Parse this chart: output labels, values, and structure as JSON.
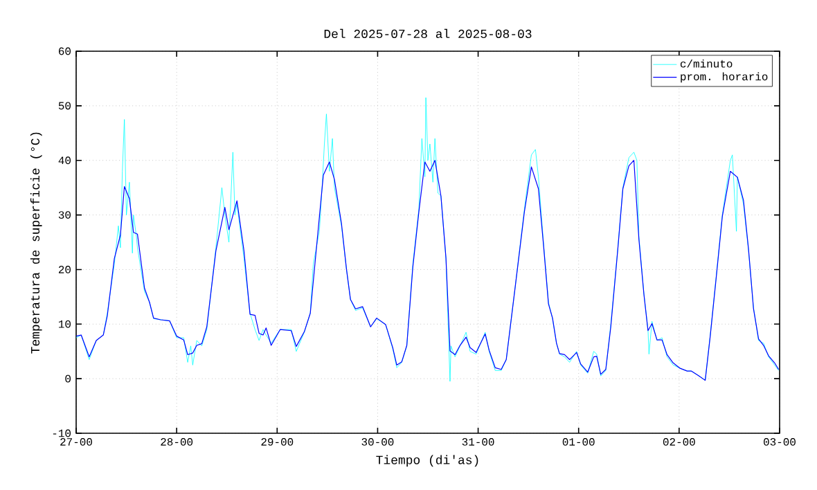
{
  "chart_data": {
    "type": "line",
    "title": "Del 2025-07-28 al 2025-08-03",
    "xlabel": "Tiempo (di'as)",
    "ylabel": "Temperatura de superficie (°C)",
    "xlim": [
      "2025-07-27",
      "2025-08-03"
    ],
    "ylim": [
      -10,
      60
    ],
    "xticks": [
      {
        "value": "2025-07-27",
        "label": "27-00"
      },
      {
        "value": "2025-07-28",
        "label": "28-00"
      },
      {
        "value": "2025-07-29",
        "label": "29-00"
      },
      {
        "value": "2025-07-30",
        "label": "30-00"
      },
      {
        "value": "2025-07-31",
        "label": "31-00"
      },
      {
        "value": "2025-08-01",
        "label": "01-00"
      },
      {
        "value": "2025-08-02",
        "label": "02-00"
      },
      {
        "value": "2025-08-03",
        "label": "03-00"
      }
    ],
    "yticks": [
      -10,
      0,
      10,
      20,
      30,
      40,
      50,
      60
    ],
    "grid": true,
    "legend": "top right",
    "line_style": "solid",
    "marker": "none",
    "series": [
      {
        "name": "c/minuto",
        "color": "#00ffff",
        "x": [
          "2025-07-27T00:00",
          "2025-07-27T01:12",
          "2025-07-27T03:07",
          "2025-07-27T04:48",
          "2025-07-27T06:29",
          "2025-07-27T07:26",
          "2025-07-27T09:07",
          "2025-07-27T10:05",
          "2025-07-27T10:34",
          "2025-07-27T11:02",
          "2025-07-27T11:31",
          "2025-07-27T12:00",
          "2025-07-27T12:43",
          "2025-07-27T13:26",
          "2025-07-27T13:41",
          "2025-07-27T14:24",
          "2025-07-27T14:38",
          "2025-07-27T16:19",
          "2025-07-27T17:31",
          "2025-07-27T18:29",
          "2025-07-27T20:10",
          "2025-07-27T22:19",
          "2025-07-28T00:00",
          "2025-07-28T01:41",
          "2025-07-28T02:38",
          "2025-07-28T03:22",
          "2025-07-28T03:50",
          "2025-07-28T04:48",
          "2025-07-28T06:00",
          "2025-07-28T07:12",
          "2025-07-28T09:22",
          "2025-07-28T10:48",
          "2025-07-28T11:31",
          "2025-07-28T12:29",
          "2025-07-28T13:26",
          "2025-07-28T13:55",
          "2025-07-28T14:24",
          "2025-07-28T16:05",
          "2025-07-28T17:31",
          "2025-07-28T18:43",
          "2025-07-28T19:41",
          "2025-07-28T20:38",
          "2025-07-28T21:22",
          "2025-07-28T22:34",
          "2025-07-29T00:43",
          "2025-07-29T03:22",
          "2025-07-29T04:34",
          "2025-07-29T06:29",
          "2025-07-29T07:55",
          "2025-07-29T08:38",
          "2025-07-29T10:05",
          "2025-07-29T10:48",
          "2025-07-29T11:17",
          "2025-07-29T11:46",
          "2025-07-29T12:29",
          "2025-07-29T13:12",
          "2025-07-29T13:41",
          "2025-07-29T15:22",
          "2025-07-29T16:34",
          "2025-07-29T17:31",
          "2025-07-29T18:43",
          "2025-07-29T20:24",
          "2025-07-29T22:19",
          "2025-07-29T23:46",
          "2025-07-30T01:55",
          "2025-07-30T03:36",
          "2025-07-30T04:34",
          "2025-07-30T05:46",
          "2025-07-30T06:58",
          "2025-07-30T08:24",
          "2025-07-30T09:50",
          "2025-07-30T10:34",
          "2025-07-30T11:17",
          "2025-07-30T11:31",
          "2025-07-30T12:00",
          "2025-07-30T12:29",
          "2025-07-30T13:12",
          "2025-07-30T13:41",
          "2025-07-30T14:24",
          "2025-07-30T15:07",
          "2025-07-30T16:19",
          "2025-07-30T17:17",
          "2025-07-30T17:31",
          "2025-07-30T18:29",
          "2025-07-30T19:41",
          "2025-07-30T21:07",
          "2025-07-30T22:05",
          "2025-07-30T23:31",
          "2025-07-31T01:41",
          "2025-07-31T02:38",
          "2025-07-31T04:05",
          "2025-07-31T05:31",
          "2025-07-31T06:43",
          "2025-07-31T08:53",
          "2025-07-31T11:02",
          "2025-07-31T12:43",
          "2025-07-31T13:41",
          "2025-07-31T14:24",
          "2025-07-31T15:36",
          "2025-07-31T16:48",
          "2025-07-31T17:46",
          "2025-07-31T18:43",
          "2025-07-31T19:26",
          "2025-07-31T20:38",
          "2025-07-31T21:50",
          "2025-07-31T23:31",
          "2025-08-01T00:29",
          "2025-08-01T02:10",
          "2025-08-01T03:36",
          "2025-08-01T04:19",
          "2025-08-01T05:17",
          "2025-08-01T06:29",
          "2025-08-01T07:41",
          "2025-08-01T09:22",
          "2025-08-01T10:34",
          "2025-08-01T12:00",
          "2025-08-01T13:12",
          "2025-08-01T13:55",
          "2025-08-01T14:24",
          "2025-08-01T15:36",
          "2025-08-01T16:34",
          "2025-08-01T16:48",
          "2025-08-01T17:31",
          "2025-08-01T18:43",
          "2025-08-01T19:55",
          "2025-08-01T21:07",
          "2025-08-01T22:34",
          "2025-08-02T00:14",
          "2025-08-02T01:55",
          "2025-08-02T02:53",
          "2025-08-02T04:34",
          "2025-08-02T06:14",
          "2025-08-02T07:26",
          "2025-08-02T08:53",
          "2025-08-02T10:19",
          "2025-08-02T12:14",
          "2025-08-02T12:43",
          "2025-08-02T13:41",
          "2025-08-02T13:55",
          "2025-08-02T15:22",
          "2025-08-02T16:34",
          "2025-08-02T17:46",
          "2025-08-02T18:58",
          "2025-08-02T20:10",
          "2025-08-02T21:22",
          "2025-08-02T22:48",
          "2025-08-02T23:46"
        ],
        "values": [
          7.5,
          8,
          3.5,
          7,
          8,
          12,
          21,
          28,
          24,
          38,
          47.5,
          30,
          36,
          23,
          30,
          26,
          24,
          16,
          14,
          11,
          10.8,
          10.6,
          7.5,
          7.5,
          3,
          6,
          2.5,
          7,
          6,
          9,
          24,
          35,
          30,
          25,
          41.5,
          30,
          32,
          22,
          12,
          9,
          7,
          9,
          8,
          6.5,
          9,
          9,
          5,
          8.5,
          12,
          21,
          27,
          36,
          43,
          48.5,
          38,
          44,
          35,
          28,
          20,
          14.5,
          12.5,
          13,
          9.5,
          11,
          9.9,
          5.5,
          2,
          3,
          6,
          21,
          31,
          44,
          37,
          51.5,
          40,
          43,
          36,
          44,
          34,
          33.5,
          22,
          -0.5,
          6,
          4,
          6,
          8.5,
          5,
          4.5,
          8.5,
          5,
          1.5,
          1.5,
          3.5,
          17,
          31,
          41,
          42,
          37,
          25,
          14,
          11,
          6.5,
          4.5,
          4,
          3,
          5,
          2.5,
          1,
          5,
          4.5,
          0.5,
          1.5,
          10,
          24,
          35,
          40.5,
          41.5,
          40,
          26,
          15.5,
          9,
          4.5,
          10.5,
          7,
          7.5,
          4,
          2.5,
          1.9,
          1.4,
          1.4,
          0.6,
          -0.3,
          8,
          19,
          30,
          40,
          41,
          27,
          37,
          32,
          23.5,
          13,
          7,
          6.5,
          4,
          2.5,
          1.5
        ]
      },
      {
        "name": "prom. horario",
        "color": "#0000ff",
        "x": [
          "2025-07-27T00:00",
          "2025-07-27T01:12",
          "2025-07-27T03:07",
          "2025-07-27T04:48",
          "2025-07-27T06:29",
          "2025-07-27T07:26",
          "2025-07-27T09:07",
          "2025-07-27T10:34",
          "2025-07-27T11:31",
          "2025-07-27T12:43",
          "2025-07-27T13:41",
          "2025-07-27T14:38",
          "2025-07-27T16:19",
          "2025-07-27T17:31",
          "2025-07-27T18:29",
          "2025-07-27T20:10",
          "2025-07-27T22:19",
          "2025-07-28T00:00",
          "2025-07-28T01:41",
          "2025-07-28T02:38",
          "2025-07-28T03:50",
          "2025-07-28T04:48",
          "2025-07-28T06:00",
          "2025-07-28T07:12",
          "2025-07-28T09:22",
          "2025-07-28T11:31",
          "2025-07-28T12:29",
          "2025-07-28T14:24",
          "2025-07-28T16:05",
          "2025-07-28T17:31",
          "2025-07-28T18:43",
          "2025-07-28T19:41",
          "2025-07-28T20:38",
          "2025-07-28T21:22",
          "2025-07-28T22:34",
          "2025-07-29T00:43",
          "2025-07-29T03:22",
          "2025-07-29T04:34",
          "2025-07-29T06:29",
          "2025-07-29T07:55",
          "2025-07-29T09:22",
          "2025-07-29T11:02",
          "2025-07-29T12:29",
          "2025-07-29T13:41",
          "2025-07-29T15:22",
          "2025-07-29T16:34",
          "2025-07-29T17:31",
          "2025-07-29T18:43",
          "2025-07-29T20:24",
          "2025-07-29T22:19",
          "2025-07-29T23:46",
          "2025-07-30T01:55",
          "2025-07-30T03:36",
          "2025-07-30T04:34",
          "2025-07-30T05:46",
          "2025-07-30T06:58",
          "2025-07-30T08:24",
          "2025-07-30T09:50",
          "2025-07-30T11:17",
          "2025-07-30T12:29",
          "2025-07-30T13:41",
          "2025-07-30T15:07",
          "2025-07-30T16:19",
          "2025-07-30T17:17",
          "2025-07-30T18:29",
          "2025-07-30T19:41",
          "2025-07-30T21:07",
          "2025-07-30T22:05",
          "2025-07-30T23:31",
          "2025-07-31T01:41",
          "2025-07-31T02:38",
          "2025-07-31T04:05",
          "2025-07-31T05:31",
          "2025-07-31T06:43",
          "2025-07-31T08:53",
          "2025-07-31T11:02",
          "2025-07-31T12:43",
          "2025-07-31T14:24",
          "2025-07-31T15:36",
          "2025-07-31T16:48",
          "2025-07-31T17:46",
          "2025-07-31T18:43",
          "2025-07-31T19:26",
          "2025-07-31T20:38",
          "2025-07-31T21:50",
          "2025-07-31T23:31",
          "2025-08-01T00:29",
          "2025-08-01T02:10",
          "2025-08-01T03:36",
          "2025-08-01T04:19",
          "2025-08-01T05:17",
          "2025-08-01T06:29",
          "2025-08-01T07:41",
          "2025-08-01T09:22",
          "2025-08-01T10:34",
          "2025-08-01T12:00",
          "2025-08-01T13:12",
          "2025-08-01T14:24",
          "2025-08-01T15:36",
          "2025-08-01T16:34",
          "2025-08-01T17:31",
          "2025-08-01T18:43",
          "2025-08-01T19:55",
          "2025-08-01T21:07",
          "2025-08-01T22:34",
          "2025-08-02T00:14",
          "2025-08-02T01:55",
          "2025-08-02T02:53",
          "2025-08-02T04:34",
          "2025-08-02T06:14",
          "2025-08-02T07:26",
          "2025-08-02T08:53",
          "2025-08-02T10:19",
          "2025-08-02T12:14",
          "2025-08-02T13:55",
          "2025-08-02T15:22",
          "2025-08-02T16:34",
          "2025-08-02T17:46",
          "2025-08-02T18:58",
          "2025-08-02T20:10",
          "2025-08-02T21:22",
          "2025-08-02T22:48",
          "2025-08-02T23:46"
        ],
        "values": [
          7.8,
          8,
          4,
          7,
          8,
          11.5,
          22,
          26.3,
          35.2,
          33,
          26.8,
          26.5,
          16.6,
          14,
          11.1,
          10.8,
          10.6,
          7.8,
          7.1,
          4.4,
          4.7,
          6.1,
          6.4,
          9.5,
          23.4,
          31.4,
          27.3,
          32.6,
          23.4,
          11.8,
          11.6,
          8.3,
          8,
          9.3,
          6.1,
          9,
          8.8,
          5.9,
          8.6,
          12,
          23.8,
          37.3,
          39.7,
          36.5,
          28.4,
          20,
          14.5,
          12.8,
          13.2,
          9.5,
          11.1,
          9.9,
          5.7,
          2.5,
          3.1,
          6.1,
          20.4,
          30.5,
          39.7,
          38,
          40,
          33.5,
          22.1,
          5.1,
          4.4,
          6.1,
          7.6,
          5.7,
          4.8,
          8.2,
          5.2,
          2,
          1.7,
          3.5,
          17,
          30.5,
          38.8,
          34.8,
          24.6,
          13.7,
          11.1,
          6.5,
          4.6,
          4.4,
          3.5,
          4.8,
          2.7,
          1.2,
          4,
          4.1,
          0.8,
          1.7,
          9.5,
          23.8,
          34.8,
          39,
          40,
          25.5,
          15.4,
          8.8,
          10.1,
          7.1,
          7.1,
          4.4,
          2.9,
          1.9,
          1.4,
          1.4,
          0.6,
          -0.3,
          7.8,
          18.7,
          29.7,
          38,
          36.9,
          32.7,
          23.8,
          12.8,
          7.3,
          6.1,
          4.2,
          2.9,
          1.7
        ]
      }
    ]
  }
}
